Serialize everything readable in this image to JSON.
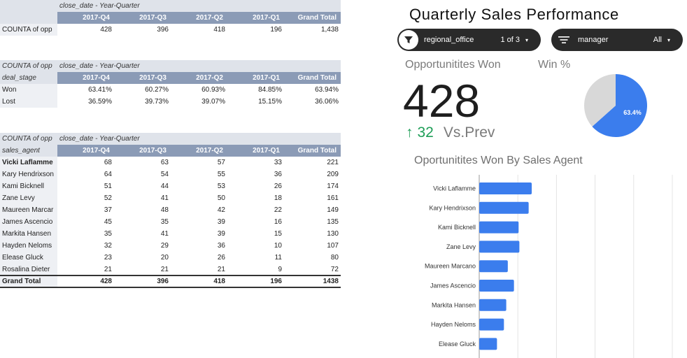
{
  "pivot1": {
    "header": "close_date - Year-Quarter",
    "columns": [
      "2017-Q4",
      "2017-Q3",
      "2017-Q2",
      "2017-Q1",
      "Grand Total"
    ],
    "row_label": "COUNTA of opp",
    "values": [
      "428",
      "396",
      "418",
      "196",
      "1,438"
    ]
  },
  "pivot2": {
    "corner": "COUNTA of opp",
    "header": "close_date - Year-Quarter",
    "row_header": "deal_stage",
    "columns": [
      "2017-Q4",
      "2017-Q3",
      "2017-Q2",
      "2017-Q1",
      "Grand Total"
    ],
    "rows": [
      {
        "label": "Won",
        "values": [
          "63.41%",
          "60.27%",
          "60.93%",
          "84.85%",
          "63.94%"
        ]
      },
      {
        "label": "Lost",
        "values": [
          "36.59%",
          "39.73%",
          "39.07%",
          "15.15%",
          "36.06%"
        ]
      }
    ]
  },
  "pivot3": {
    "corner": "COUNTA of opp",
    "header": "close_date - Year-Quarter",
    "row_header": "sales_agent",
    "columns": [
      "2017-Q4",
      "2017-Q3",
      "2017-Q2",
      "2017-Q1",
      "Grand Total"
    ],
    "rows": [
      {
        "label": "Vicki Laflamme",
        "values": [
          "68",
          "63",
          "57",
          "33",
          "221"
        ]
      },
      {
        "label": "Kary Hendrixson",
        "values": [
          "64",
          "54",
          "55",
          "36",
          "209"
        ]
      },
      {
        "label": "Kami Bicknell",
        "values": [
          "51",
          "44",
          "53",
          "26",
          "174"
        ]
      },
      {
        "label": "Zane Levy",
        "values": [
          "52",
          "41",
          "50",
          "18",
          "161"
        ]
      },
      {
        "label": "Maureen Marcar",
        "values": [
          "37",
          "48",
          "42",
          "22",
          "149"
        ]
      },
      {
        "label": "James Ascencio",
        "values": [
          "45",
          "35",
          "39",
          "16",
          "135"
        ]
      },
      {
        "label": "Markita Hansen",
        "values": [
          "35",
          "41",
          "39",
          "15",
          "130"
        ]
      },
      {
        "label": "Hayden Neloms",
        "values": [
          "32",
          "29",
          "36",
          "10",
          "107"
        ]
      },
      {
        "label": "Elease Gluck",
        "values": [
          "23",
          "20",
          "26",
          "11",
          "80"
        ]
      },
      {
        "label": "Rosalina Dieter",
        "values": [
          "21",
          "21",
          "21",
          "9",
          "72"
        ]
      }
    ],
    "total": {
      "label": "Grand Total",
      "values": [
        "428",
        "396",
        "418",
        "196",
        "1438"
      ]
    }
  },
  "dashboard": {
    "title": "Quarterly Sales Performance",
    "filter_region": {
      "icon": "funnel-icon",
      "label": "regional_office",
      "value": "1 of 3",
      "caret": "▾"
    },
    "filter_manager": {
      "icon": "sort-lines-icon",
      "label": "manager",
      "value": "All",
      "caret": "▾"
    },
    "kpi_label": "Opportunitites Won",
    "kpi_value": "428",
    "kpi_delta_arrow": "↑",
    "kpi_delta": "32",
    "kpi_delta_label": "Vs.Prev",
    "win_label": "Win %",
    "win_percent_text": "63.4%",
    "bar_title": "Oportunitites Won By Sales Agent",
    "colors": {
      "accent": "#3b7ded",
      "pie_rest": "#d8d8d8",
      "positive": "#1e9e57",
      "header": "#8b9bb6"
    }
  },
  "chart_data": [
    {
      "type": "pie",
      "title": "Win %",
      "slices": [
        {
          "value": 63.4
        },
        {
          "value": 36.6
        }
      ],
      "labels": [
        "63.4%"
      ]
    },
    {
      "type": "bar",
      "orientation": "horizontal",
      "title": "Oportunitites Won By Sales Agent",
      "categories": [
        "Vicki Laflamme",
        "Kary Hendrixson",
        "Kami Bicknell",
        "Zane Levy",
        "Maureen Marcano",
        "James Ascencio",
        "Markita Hansen",
        "Hayden Neloms",
        "Elease Gluck"
      ],
      "values": [
        68,
        64,
        51,
        52,
        37,
        45,
        35,
        32,
        23
      ],
      "xlim": [
        0,
        250
      ],
      "grid": true
    }
  ]
}
